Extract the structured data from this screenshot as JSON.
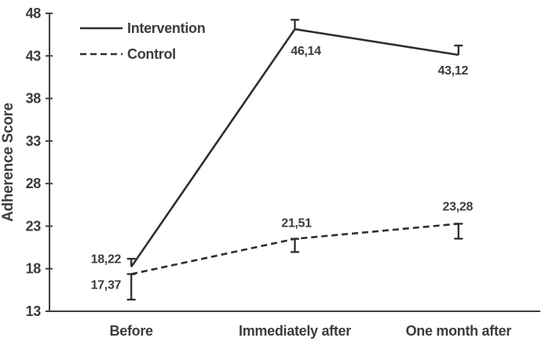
{
  "chart_data": {
    "type": "line",
    "title": "",
    "xlabel": "",
    "ylabel": "Adherence Score",
    "categories": [
      "Before",
      "Immediately after",
      "One month after"
    ],
    "ylim": [
      13,
      48
    ],
    "yticks": [
      13,
      18,
      23,
      28,
      33,
      38,
      43,
      48
    ],
    "grid": false,
    "legend_position": "top-left",
    "series": [
      {
        "name": "Intervention",
        "line_style": "solid",
        "values": [
          18.22,
          46.14,
          43.12
        ],
        "point_labels": [
          "18,22",
          "46,14",
          "43,12"
        ],
        "error_bars": [
          {
            "direction": "up",
            "length": 0.95,
            "caps": "end"
          },
          {
            "direction": "up",
            "length": 1.1,
            "caps": "end"
          },
          {
            "direction": "up",
            "length": 1.1,
            "caps": "end"
          }
        ]
      },
      {
        "name": "Control",
        "line_style": "dashed",
        "values": [
          17.37,
          21.51,
          23.28
        ],
        "point_labels": [
          "17,37",
          "21,51",
          "23,28"
        ],
        "error_bars": [
          {
            "direction": "down",
            "length": 3.0,
            "caps": "both"
          },
          {
            "direction": "down",
            "length": 1.55,
            "caps": "both"
          },
          {
            "direction": "down",
            "length": 1.75,
            "caps": "both"
          }
        ]
      }
    ],
    "colors": {
      "series_line": "#2e2e2e",
      "axis": "#3f3f3f",
      "text": "#3c3c3c",
      "background": "#ffffff"
    }
  }
}
